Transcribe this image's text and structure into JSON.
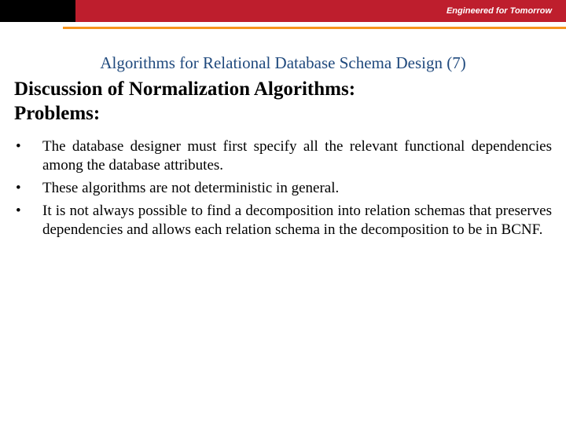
{
  "header": {
    "tagline": "Engineered for Tomorrow",
    "left_bg": "#000000",
    "right_bg": "#be1e2d",
    "accent_color": "#f7941d"
  },
  "title": {
    "text": "Algorithms for Relational Database Schema Design (7)",
    "color": "#1f497d",
    "fontsize": 21
  },
  "subtitle": {
    "line1": "Discussion of Normalization Algorithms:",
    "line2": "Problems:",
    "fontsize": 25
  },
  "bullets": {
    "items": [
      "The database designer must first specify all the relevant functional dependencies among the database attributes.",
      "These algorithms are not deterministic in general.",
      "It is not always possible to find a decomposition into relation schemas that preserves dependencies and allows each relation schema in the decomposition to be in BCNF."
    ],
    "fontsize": 19,
    "marker": "•"
  },
  "colors": {
    "background": "#ffffff",
    "text": "#000000",
    "tagline_text": "#ffffff"
  }
}
